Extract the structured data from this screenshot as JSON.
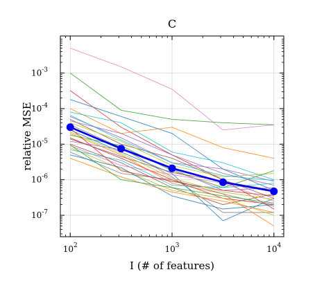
{
  "chart_data": {
    "type": "line",
    "title": "C",
    "xlabel": "I  (# of features)",
    "ylabel": "relative MSE",
    "xscale": "log",
    "yscale": "log",
    "xlim": [
      80,
      12500
    ],
    "ylim": [
      2.5e-08,
      0.011
    ],
    "grid": true,
    "x": [
      100,
      316,
      1000,
      3162,
      10000
    ],
    "x_ticks": [
      {
        "value": 100,
        "base": "10",
        "exp": "2"
      },
      {
        "value": 1000,
        "base": "10",
        "exp": "3"
      },
      {
        "value": 10000,
        "base": "10",
        "exp": "4"
      }
    ],
    "y_ticks": [
      {
        "value": 1e-07,
        "base": "10",
        "exp": "-7"
      },
      {
        "value": 1e-06,
        "base": "10",
        "exp": "-6"
      },
      {
        "value": 1e-05,
        "base": "10",
        "exp": "-5"
      },
      {
        "value": 0.0001,
        "base": "10",
        "exp": "-4"
      },
      {
        "value": 0.001,
        "base": "10",
        "exp": "-3"
      }
    ],
    "mean_series": {
      "color": "#0000ee",
      "values": [
        3e-05,
        7.5e-06,
        2.1e-06,
        8.5e-07,
        4.7e-07
      ]
    },
    "series": [
      {
        "color": "#e377c2",
        "values": [
          0.005,
          0.0015,
          0.00035,
          2.5e-05,
          3.5e-05
        ]
      },
      {
        "color": "#2ca02c",
        "values": [
          0.001,
          9e-05,
          5e-05,
          4e-05,
          3.5e-05
        ]
      },
      {
        "color": "#d62728",
        "values": [
          0.00032,
          3e-05,
          5e-06,
          1e-06,
          1.5e-07
        ]
      },
      {
        "color": "#1f77b4",
        "values": [
          0.00018,
          6e-05,
          2e-05,
          2e-06,
          5e-07
        ]
      },
      {
        "color": "#ff7f0e",
        "values": [
          0.0001,
          2e-05,
          3e-05,
          8e-06,
          4e-06
        ]
      },
      {
        "color": "#17becf",
        "values": [
          8e-05,
          4e-05,
          6e-06,
          3e-06,
          1e-06
        ]
      },
      {
        "color": "#9467bd",
        "values": [
          6e-05,
          1.5e-05,
          3e-06,
          2e-06,
          9e-07
        ]
      },
      {
        "color": "#8c564b",
        "values": [
          5e-05,
          1e-05,
          4e-06,
          1e-06,
          3e-07
        ]
      },
      {
        "color": "#bcbd22",
        "values": [
          4e-05,
          1.2e-05,
          2.5e-06,
          1.2e-06,
          1.5e-06
        ]
      },
      {
        "color": "#7f7f7f",
        "values": [
          3.5e-05,
          8e-06,
          1.2e-06,
          1.2e-07,
          1.2e-07
        ]
      },
      {
        "color": "#1f77b4",
        "values": [
          2.5e-05,
          6e-06,
          1.5e-06,
          7e-08,
          3e-07
        ]
      },
      {
        "color": "#ff7f0e",
        "values": [
          2e-05,
          5e-06,
          8e-07,
          4e-07,
          5e-08
        ]
      },
      {
        "color": "#2ca02c",
        "values": [
          1.8e-05,
          9e-06,
          1.8e-06,
          6e-07,
          1.8e-06
        ]
      },
      {
        "color": "#d62728",
        "values": [
          1.5e-05,
          4e-06,
          1e-06,
          3e-07,
          2e-07
        ]
      },
      {
        "color": "#9467bd",
        "values": [
          1.2e-05,
          7e-06,
          2e-06,
          5e-07,
          6e-07
        ]
      },
      {
        "color": "#8c564b",
        "values": [
          1e-05,
          3e-06,
          6e-07,
          2e-07,
          4e-07
        ]
      },
      {
        "color": "#e377c2",
        "values": [
          9e-06,
          2.5e-06,
          1.4e-06,
          8e-07,
          2.5e-07
        ]
      },
      {
        "color": "#bcbd22",
        "values": [
          8e-06,
          2e-06,
          5e-07,
          3e-07,
          1e-07
        ]
      },
      {
        "color": "#17becf",
        "values": [
          7e-06,
          3.5e-06,
          7e-07,
          6e-07,
          8e-07
        ]
      },
      {
        "color": "#7f7f7f",
        "values": [
          6e-06,
          1.5e-06,
          1e-06,
          4e-07,
          1.8e-07
        ]
      },
      {
        "color": "#1f77b4",
        "values": [
          5e-06,
          2.2e-06,
          3.5e-07,
          1.5e-07,
          2e-07
        ]
      },
      {
        "color": "#ff7f0e",
        "values": [
          4e-06,
          1.2e-06,
          4.5e-07,
          2.5e-07,
          1.2e-07
        ]
      },
      {
        "color": "#2ca02c",
        "values": [
          9.5e-06,
          1e-06,
          6e-07,
          3.5e-07,
          2.2e-07
        ]
      },
      {
        "color": "#d62728",
        "values": [
          2.8e-05,
          1.8e-06,
          9e-07,
          5e-07,
          3.5e-07
        ]
      },
      {
        "color": "#9467bd",
        "values": [
          4.5e-05,
          2e-05,
          5e-06,
          1.5e-06,
          7e-07
        ]
      },
      {
        "color": "#8c564b",
        "values": [
          1.4e-05,
          4.5e-06,
          1.6e-06,
          9e-07,
          5e-07
        ]
      },
      {
        "color": "#17becf",
        "values": [
          6.5e-05,
          1.3e-05,
          3e-06,
          1.3e-06,
          9.5e-07
        ]
      },
      {
        "color": "#bcbd22",
        "values": [
          2.2e-05,
          5.5e-06,
          1.1e-06,
          4.5e-07,
          2.8e-07
        ]
      }
    ]
  }
}
